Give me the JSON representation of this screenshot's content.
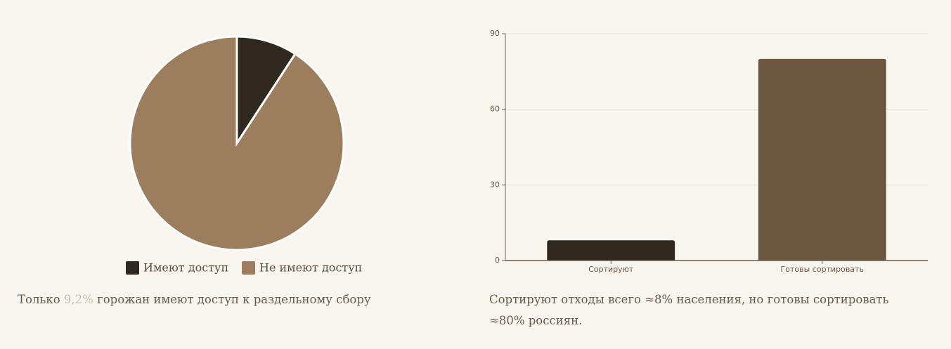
{
  "chart_data": [
    {
      "type": "pie",
      "categories": [
        "Имеют доступ",
        "Не имеют доступ"
      ],
      "values": [
        9.2,
        90.8
      ],
      "colors": [
        "#2f281e",
        "#9c7d5d"
      ],
      "caption": {
        "before": "Только",
        "highlight": "9,2%",
        "after": "горожан имеют доступ к раздельному сбору"
      }
    },
    {
      "type": "bar",
      "categories": [
        "Сортируют",
        "Готовы сортировать"
      ],
      "values": [
        8,
        80
      ],
      "colors": [
        "#2f281e",
        "#6b5740"
      ],
      "ylim": [
        0,
        90
      ],
      "yticks": [
        0,
        30,
        60,
        90
      ],
      "grid": true,
      "caption": "Сортируют отходы всего ≈8% населения, но готовы сортировать ≈80% россиян."
    }
  ]
}
